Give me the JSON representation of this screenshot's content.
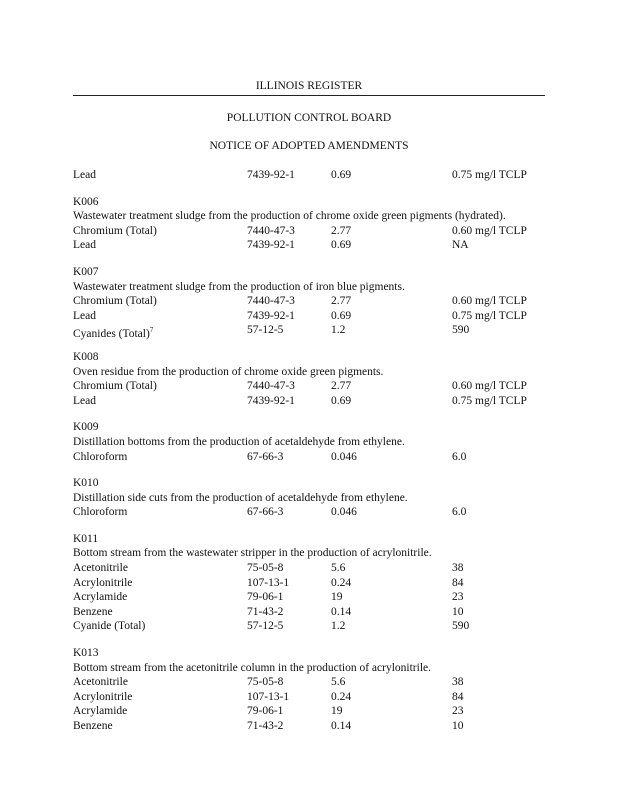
{
  "header": {
    "register": "ILLINOIS REGISTER",
    "agency": "POLLUTION CONTROL BOARD",
    "notice": "NOTICE OF ADOPTED AMENDMENTS"
  },
  "lead_row": [
    "Lead",
    "7439-92-1",
    "0.69",
    "0.75 mg/l TCLP"
  ],
  "sections": [
    {
      "code": "K006",
      "desc": "Wastewater treatment sludge from the production of chrome oxide green pigments (hydrated).",
      "rows": [
        [
          "Chromium (Total)",
          "7440-47-3",
          "2.77",
          "0.60 mg/l TCLP"
        ],
        [
          "Lead",
          "7439-92-1",
          "0.69",
          "NA"
        ]
      ]
    },
    {
      "code": "K007",
      "desc": "Wastewater treatment sludge from the production of iron blue pigments.",
      "rows": [
        [
          "Chromium (Total)",
          "7440-47-3",
          "2.77",
          "0.60 mg/l TCLP"
        ],
        [
          "Lead",
          "7439-92-1",
          "0.69",
          "0.75 mg/l TCLP"
        ],
        [
          "Cyanides (Total)",
          "57-12-5",
          "1.2",
          "590"
        ]
      ],
      "footnote_mark": "7"
    },
    {
      "code": "K008",
      "desc": "Oven residue from the production of chrome oxide green pigments.",
      "rows": [
        [
          "Chromium (Total)",
          "7440-47-3",
          "2.77",
          "0.60 mg/l TCLP"
        ],
        [
          "Lead",
          "7439-92-1",
          "0.69",
          "0.75 mg/l TCLP"
        ]
      ]
    },
    {
      "code": "K009",
      "desc": "Distillation bottoms from the production of acetaldehyde from ethylene.",
      "rows": [
        [
          "Chloroform",
          "67-66-3",
          "0.046",
          "6.0"
        ]
      ]
    },
    {
      "code": "K010",
      "desc": "Distillation side cuts from the production of acetaldehyde from ethylene.",
      "rows": [
        [
          "Chloroform",
          "67-66-3",
          "0.046",
          "6.0"
        ]
      ]
    },
    {
      "code": "K011",
      "desc": "Bottom stream from the wastewater stripper in the production of acrylonitrile.",
      "rows": [
        [
          "Acetonitrile",
          "75-05-8",
          "5.6",
          "38"
        ],
        [
          "Acrylonitrile",
          "107-13-1",
          "0.24",
          "84"
        ],
        [
          "Acrylamide",
          "79-06-1",
          "19",
          "23"
        ],
        [
          "Benzene",
          "71-43-2",
          "0.14",
          "10"
        ],
        [
          "Cyanide (Total)",
          "57-12-5",
          "1.2",
          "590"
        ]
      ]
    },
    {
      "code": "K013",
      "desc": "Bottom stream from the acetonitrile column in the production of acrylonitrile.",
      "rows": [
        [
          "Acetonitrile",
          "75-05-8",
          "5.6",
          "38"
        ],
        [
          "Acrylonitrile",
          "107-13-1",
          "0.24",
          "84"
        ],
        [
          "Acrylamide",
          "79-06-1",
          "19",
          "23"
        ],
        [
          "Benzene",
          "71-43-2",
          "0.14",
          "10"
        ]
      ]
    }
  ]
}
